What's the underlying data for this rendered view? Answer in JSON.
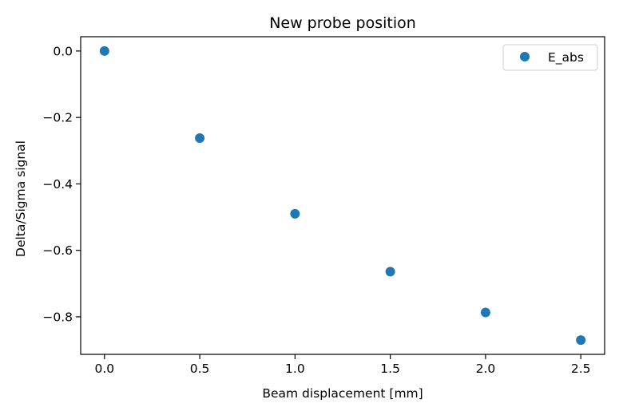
{
  "chart_data": {
    "type": "scatter",
    "title": "New probe position",
    "xlabel": "Beam displacement [mm]",
    "ylabel": "Delta/Sigma signal",
    "xlim": [
      -0.125,
      2.625
    ],
    "ylim": [
      -0.913,
      0.043
    ],
    "xticks": [
      0.0,
      0.5,
      1.0,
      1.5,
      2.0,
      2.5
    ],
    "xtick_labels": [
      "0.0",
      "0.5",
      "1.0",
      "1.5",
      "2.0",
      "2.5"
    ],
    "yticks": [
      0.0,
      -0.2,
      -0.4,
      -0.6,
      -0.8
    ],
    "ytick_labels": [
      "0.0",
      "−0.2",
      "−0.4",
      "−0.6",
      "−0.8"
    ],
    "grid": false,
    "legend_position": "top-right",
    "series": [
      {
        "name": "E_abs",
        "color": "#1f77b4",
        "marker": "circle",
        "x": [
          0.0,
          0.5,
          1.0,
          1.5,
          2.0,
          2.5
        ],
        "y": [
          0.0,
          -0.262,
          -0.49,
          -0.664,
          -0.787,
          -0.87
        ]
      }
    ]
  }
}
